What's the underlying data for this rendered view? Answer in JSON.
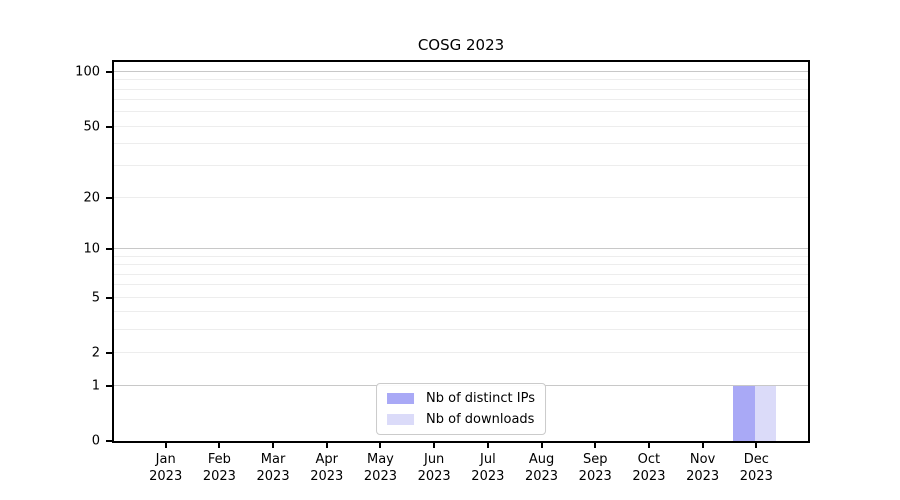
{
  "figure": {
    "background": "#ffffff"
  },
  "chart_data": {
    "type": "bar",
    "title": "COSG 2023",
    "categories": [
      "Jan 2023",
      "Feb 2023",
      "Mar 2023",
      "Apr 2023",
      "May 2023",
      "Jun 2023",
      "Jul 2023",
      "Aug 2023",
      "Sep 2023",
      "Oct 2023",
      "Nov 2023",
      "Dec 2023"
    ],
    "months": [
      "Jan",
      "Feb",
      "Mar",
      "Apr",
      "May",
      "Jun",
      "Jul",
      "Aug",
      "Sep",
      "Oct",
      "Nov",
      "Dec"
    ],
    "year": "2023",
    "series": [
      {
        "name": "Nb of distinct IPs",
        "color": "#a9a9f6",
        "values": [
          0,
          0,
          0,
          0,
          0,
          0,
          0,
          0,
          0,
          0,
          0,
          1
        ]
      },
      {
        "name": "Nb of downloads",
        "color": "#dbdbf9",
        "values": [
          0,
          0,
          0,
          0,
          0,
          0,
          0,
          0,
          0,
          0,
          0,
          1
        ]
      }
    ],
    "xlabel": "",
    "ylabel": "",
    "y_axis": {
      "scale": "log1p",
      "top_value": 113.3,
      "labeled_ticks": [
        0,
        1,
        2,
        5,
        10,
        20,
        50,
        100
      ],
      "major_gridlines": [
        1,
        10,
        100
      ],
      "minor_gridlines": [
        2,
        3,
        4,
        5,
        6,
        7,
        8,
        9,
        20,
        30,
        40,
        50,
        60,
        70,
        80,
        90
      ]
    },
    "ylim": [
      0,
      113.3
    ],
    "grid": {
      "major_color": "#c8c8c8",
      "minor_color": "#ededed"
    },
    "legend": {
      "position": "lower center"
    },
    "bar_layout": {
      "group_slots": 13,
      "bar_width_units": 0.4
    }
  }
}
